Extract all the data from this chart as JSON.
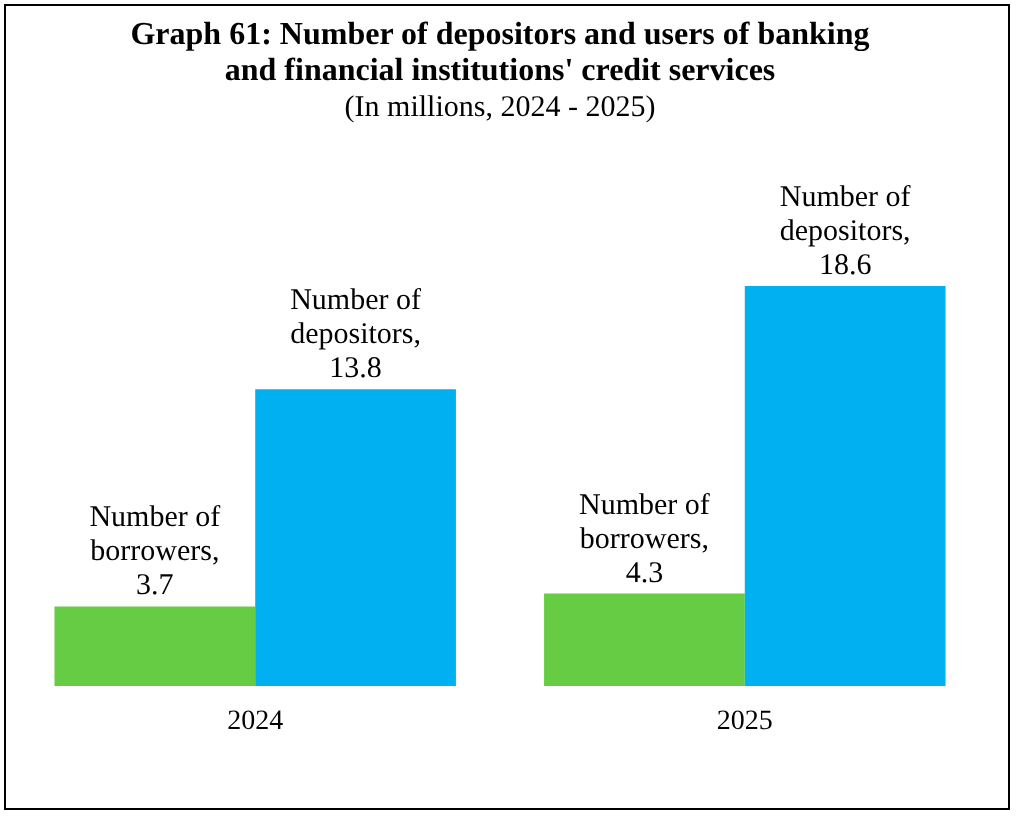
{
  "chart_data": {
    "type": "bar",
    "title": "Graph 61: Number of depositors and users of banking and financial institutions' credit services",
    "subtitle": "(In millions, 2024 - 2025)",
    "categories": [
      "2024",
      "2025"
    ],
    "series": [
      {
        "name": "Number of borrowers,",
        "color": "#66cc44",
        "values": [
          3.7,
          4.3
        ]
      },
      {
        "name": "Number of depositors,",
        "color": "#00b0f0",
        "values": [
          13.8,
          18.6
        ]
      }
    ],
    "data_labels": true,
    "legend": false,
    "grid": false
  }
}
